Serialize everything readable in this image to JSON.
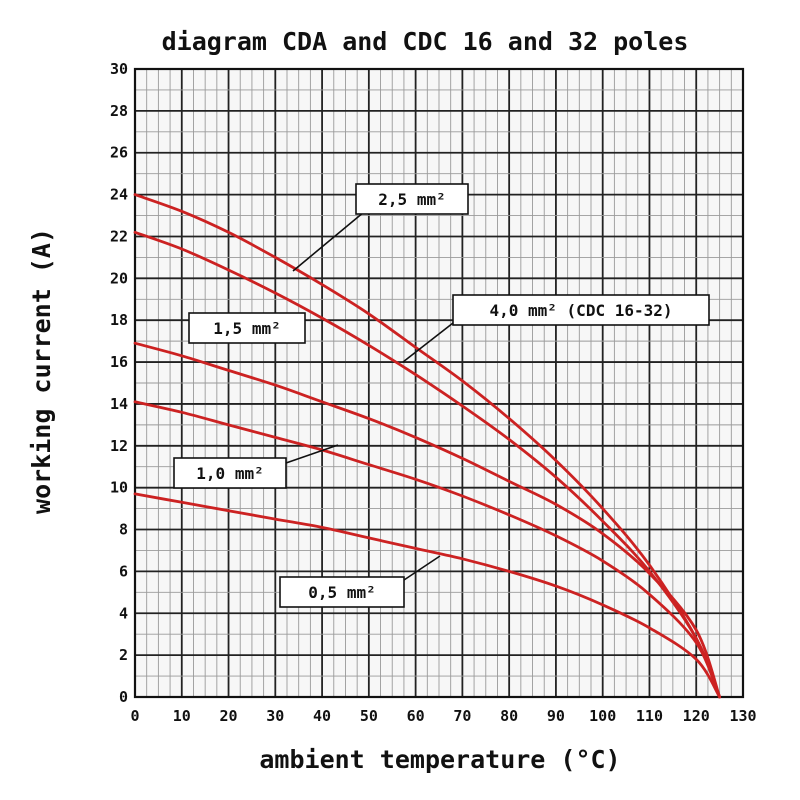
{
  "chart_data": {
    "type": "line",
    "title": "diagram CDA and CDC 16 and 32 poles",
    "xlabel": "ambient temperature (°C)",
    "ylabel": "working current (A)",
    "xlim": [
      0,
      130
    ],
    "ylim": [
      0,
      30
    ],
    "x_ticks": [
      "0",
      "10",
      "20",
      "30",
      "40",
      "50",
      "60",
      "70",
      "80",
      "90",
      "100",
      "110",
      "120",
      "130"
    ],
    "y_ticks": [
      "0",
      "2",
      "4",
      "6",
      "8",
      "10",
      "12",
      "14",
      "16",
      "18",
      "20",
      "22",
      "24",
      "26",
      "28",
      "30"
    ],
    "grid": true,
    "series": [
      {
        "name": "2,5 mm²",
        "color": "#cc2222",
        "x": [
          0,
          10,
          20,
          30,
          40,
          50,
          60,
          70,
          80,
          90,
          100,
          110,
          120,
          125
        ],
        "y": [
          24.0,
          23.2,
          22.2,
          21.0,
          19.7,
          18.3,
          16.7,
          15.1,
          13.3,
          11.3,
          9.0,
          6.3,
          2.8,
          0
        ]
      },
      {
        "name": "4,0 mm² (CDC 16-32)",
        "color": "#cc2222",
        "x": [
          0,
          10,
          20,
          30,
          40,
          50,
          60,
          70,
          80,
          90,
          100,
          110,
          120,
          125
        ],
        "y": [
          22.2,
          21.4,
          20.4,
          19.3,
          18.1,
          16.8,
          15.4,
          13.9,
          12.3,
          10.5,
          8.4,
          6.0,
          2.8,
          0
        ]
      },
      {
        "name": "1,5 mm²",
        "color": "#cc2222",
        "x": [
          0,
          10,
          20,
          30,
          40,
          50,
          60,
          70,
          80,
          90,
          100,
          110,
          120,
          125
        ],
        "y": [
          16.9,
          16.3,
          15.6,
          14.9,
          14.1,
          13.3,
          12.4,
          11.4,
          10.3,
          9.2,
          7.8,
          5.9,
          3.2,
          0
        ]
      },
      {
        "name": "1,0 mm²",
        "color": "#cc2222",
        "x": [
          0,
          10,
          20,
          30,
          40,
          50,
          60,
          70,
          80,
          90,
          100,
          110,
          120,
          125
        ],
        "y": [
          14.1,
          13.6,
          13.0,
          12.4,
          11.8,
          11.1,
          10.4,
          9.6,
          8.7,
          7.7,
          6.5,
          4.9,
          2.6,
          0
        ]
      },
      {
        "name": "0,5 mm²",
        "color": "#cc2222",
        "x": [
          0,
          10,
          20,
          30,
          40,
          50,
          60,
          70,
          80,
          90,
          100,
          110,
          120,
          125
        ],
        "y": [
          9.7,
          9.3,
          8.9,
          8.5,
          8.1,
          7.6,
          7.1,
          6.6,
          6.0,
          5.3,
          4.4,
          3.3,
          1.8,
          0
        ]
      }
    ]
  }
}
